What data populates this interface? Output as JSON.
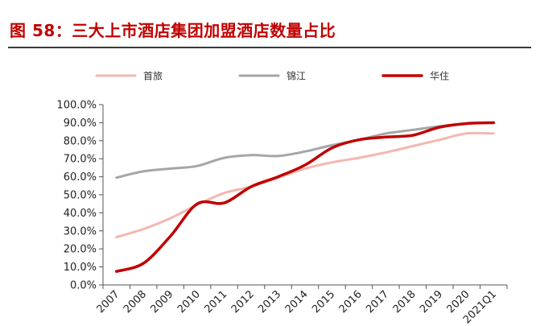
{
  "title": "图 58：三大上市酒店集团加盟酒店数量占比",
  "chart_data": {
    "type": "line",
    "categories": [
      "2007",
      "2008",
      "2009",
      "2010",
      "2011",
      "2012",
      "2013",
      "2014",
      "2015",
      "2016",
      "2017",
      "2018",
      "2019",
      "2020",
      "2021Q1"
    ],
    "ylim": [
      0,
      100
    ],
    "yticks": [
      "0.0%",
      "10.0%",
      "20.0%",
      "30.0%",
      "40.0%",
      "50.0%",
      "60.0%",
      "70.0%",
      "80.0%",
      "90.0%",
      "100.0%"
    ],
    "legend_position": "top",
    "series": [
      {
        "name": "首旅",
        "color": "#f2b8b0",
        "width": 3,
        "values": [
          26.5,
          31,
          37,
          44.5,
          51,
          54.5,
          59.5,
          64.5,
          68,
          70.5,
          73.5,
          77,
          80.5,
          84,
          84
        ]
      },
      {
        "name": "锦江",
        "color": "#a6a6a6",
        "width": 3,
        "values": [
          59.5,
          63,
          64.5,
          66,
          70.5,
          72,
          71.5,
          74,
          77.5,
          80.5,
          84,
          86,
          88,
          89.5,
          90
        ]
      },
      {
        "name": "华住",
        "color": "#c00000",
        "width": 3.5,
        "values": [
          7.5,
          12,
          27,
          45,
          45.5,
          54.5,
          60,
          66.5,
          76,
          80.5,
          82,
          83,
          87.5,
          89.5,
          90
        ]
      }
    ]
  }
}
